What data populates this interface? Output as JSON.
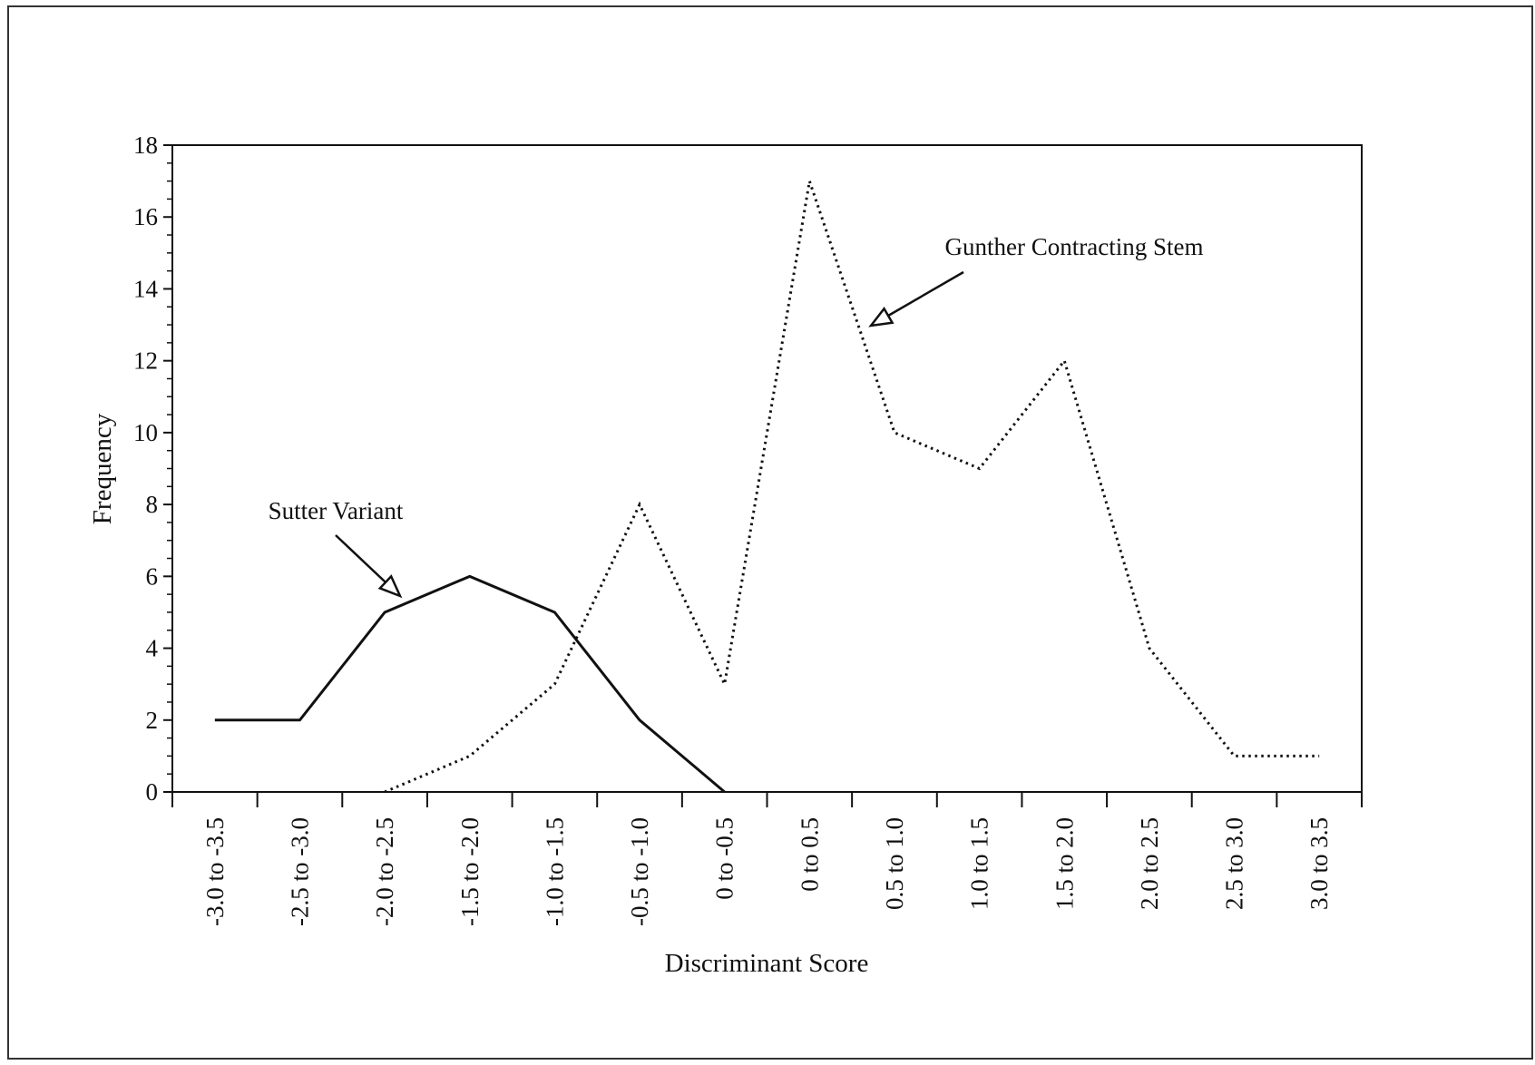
{
  "chart_data": {
    "type": "line",
    "title": "",
    "xlabel": "Discriminant Score",
    "ylabel": "Frequency",
    "ylim": [
      0,
      18
    ],
    "yticks": [
      0,
      2,
      4,
      6,
      8,
      10,
      12,
      14,
      16,
      18
    ],
    "categories": [
      "-3.0 to -3.5",
      "-2.5 to -3.0",
      "-2.0 to -2.5",
      "-1.5 to -2.0",
      "-1.0 to -1.5",
      "-0.5 to -1.0",
      "0 to -0.5",
      "0 to 0.5",
      "0.5 to 1.0",
      "1.0 to 1.5",
      "1.5 to 2.0",
      "2.0 to 2.5",
      "2.5 to 3.0",
      "3.0 to 3.5"
    ],
    "series": [
      {
        "name": "Sutter Variant",
        "style": "solid",
        "color": "#111111",
        "values": [
          2,
          2,
          5,
          6,
          5,
          2,
          0,
          null,
          null,
          null,
          null,
          null,
          null,
          null
        ]
      },
      {
        "name": "Gunther Contracting Stem",
        "style": "dotted",
        "color": "#111111",
        "values": [
          null,
          null,
          0,
          1,
          3,
          8,
          3,
          17,
          10,
          9,
          12,
          4,
          1,
          1
        ]
      }
    ],
    "annotations": [
      {
        "text": "Sutter Variant",
        "series": 0,
        "pointing_to": "-2.0 to -2.5"
      },
      {
        "text": "Gunther Contracting Stem",
        "series": 1,
        "pointing_to": "0.5 to 1.0"
      }
    ],
    "grid": false,
    "legend": "none"
  }
}
